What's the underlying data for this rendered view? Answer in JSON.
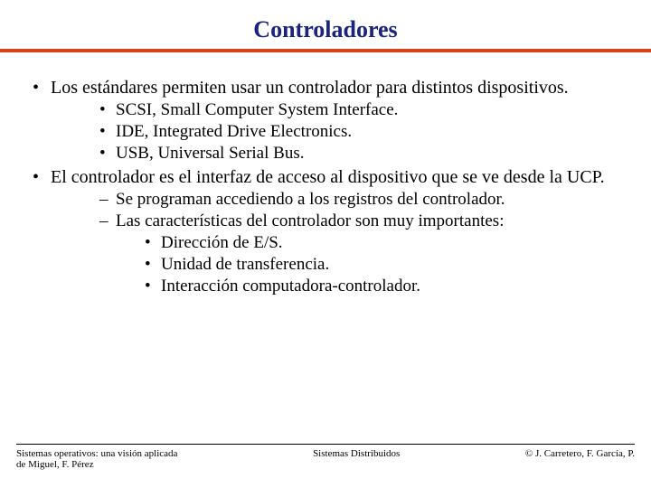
{
  "title": {
    "text": "Controladores",
    "color": "#1a237e",
    "fontsize": 26
  },
  "rule": {
    "color": "#d84315",
    "height": 4
  },
  "body": {
    "fontsize_l1": 20,
    "fontsize_l2": 19,
    "fontsize_l3": 19,
    "items": [
      {
        "text": "Los estándares permiten usar un controlador para distintos dispositivos.",
        "sub_style": "bullets",
        "children": [
          {
            "text": "SCSI, Small Computer System Interface."
          },
          {
            "text": "IDE, Integrated Drive Electronics."
          },
          {
            "text": "USB, Universal Serial Bus."
          }
        ]
      },
      {
        "text": "El controlador es el interfaz de acceso al dispositivo que se ve desde la UCP.",
        "sub_style": "dashes",
        "children": [
          {
            "text": "Se programan accediendo a los registros del controlador."
          },
          {
            "text": "Las características del controlador son muy importantes:",
            "children": [
              {
                "text": "Dirección de E/S."
              },
              {
                "text": "Unidad de transferencia."
              },
              {
                "text": "Interacción computadora-controlador."
              }
            ]
          }
        ]
      }
    ]
  },
  "footer": {
    "fontsize": 11,
    "left_line1": "Sistemas operativos: una visión aplicada",
    "left_line2": "de Miguel, F. Pérez",
    "center": "Sistemas Distribuidos",
    "right": "© J. Carretero, F. García, P."
  }
}
